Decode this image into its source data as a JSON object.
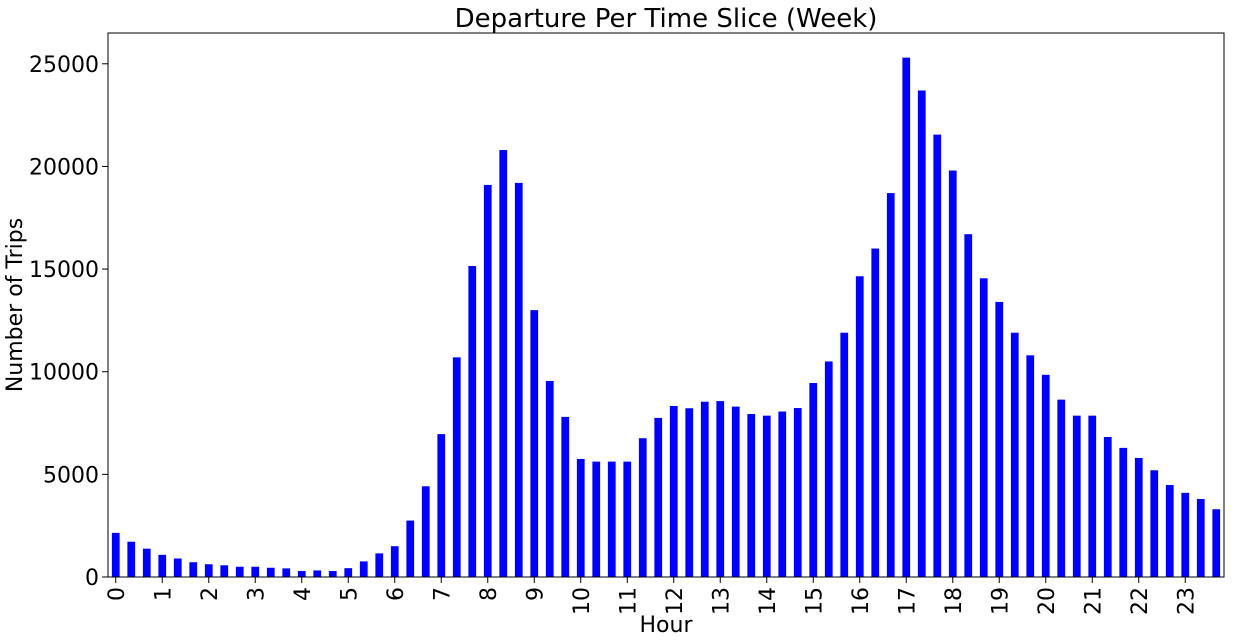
{
  "chart_data": {
    "type": "bar",
    "title": "Departure Per Time Slice (Week)",
    "xlabel": "Hour",
    "ylabel": "Number of Trips",
    "ylim": [
      0,
      26500
    ],
    "yticks": [
      0,
      5000,
      10000,
      15000,
      20000,
      25000
    ],
    "xtick_labels": [
      "0",
      "1",
      "2",
      "3",
      "4",
      "5",
      "6",
      "7",
      "8",
      "9",
      "10",
      "11",
      "12",
      "13",
      "14",
      "15",
      "16",
      "17",
      "18",
      "19",
      "20",
      "21",
      "22",
      "23"
    ],
    "bar_color": "#0000ff",
    "grid": false,
    "legend": "none",
    "slices_per_hour": 3,
    "values": [
      2150,
      1720,
      1380,
      1080,
      900,
      720,
      620,
      570,
      500,
      500,
      450,
      420,
      290,
      320,
      290,
      430,
      760,
      1150,
      1500,
      2750,
      4420,
      6960,
      10700,
      15150,
      19100,
      20800,
      19200,
      13000,
      9550,
      7800,
      5750,
      5620,
      5620,
      5620,
      6760,
      7750,
      8330,
      8220,
      8540,
      8570,
      8300,
      7940,
      7860,
      8060,
      8230,
      9450,
      10500,
      11900,
      14650,
      16000,
      18700,
      25300,
      23700,
      21550,
      19800,
      16700,
      14550,
      13400,
      11900,
      10800,
      9850,
      8640,
      7860,
      7860,
      6820,
      6290,
      5800,
      5200,
      4480,
      4100,
      3800,
      3300
    ]
  }
}
